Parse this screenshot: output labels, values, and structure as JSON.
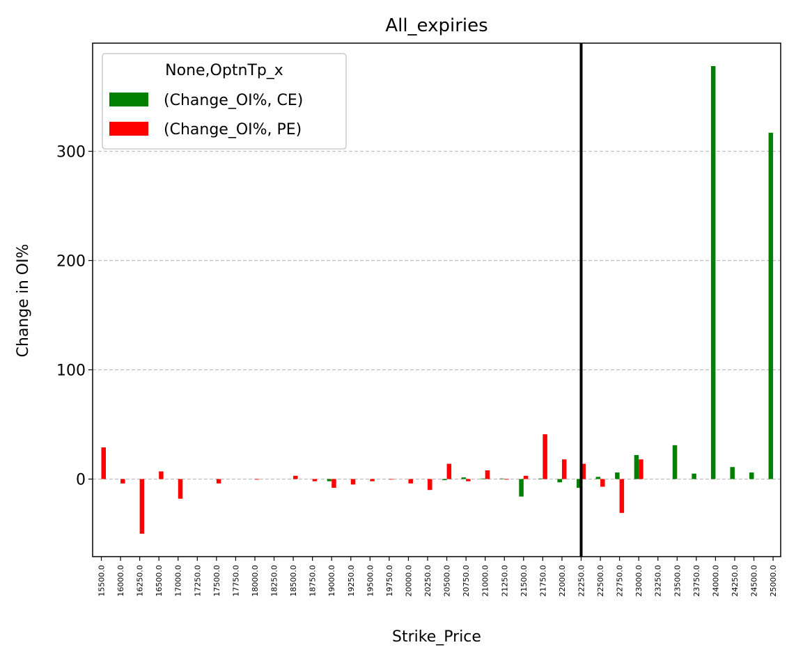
{
  "chart_data": {
    "type": "bar",
    "title": "All_expiries",
    "xlabel": "Strike_Price",
    "ylabel": "Change in OI%",
    "ylim": [
      -71,
      399
    ],
    "yticks": [
      0,
      100,
      200,
      300
    ],
    "grid": "y-dashed",
    "legend": {
      "title": "None,OptnTp_x",
      "position": "top-left"
    },
    "categories": [
      "15500.0",
      "16000.0",
      "16250.0",
      "16500.0",
      "17000.0",
      "17250.0",
      "17500.0",
      "17750.0",
      "18000.0",
      "18250.0",
      "18500.0",
      "18750.0",
      "19000.0",
      "19250.0",
      "19500.0",
      "19750.0",
      "20000.0",
      "20250.0",
      "20500.0",
      "20750.0",
      "21000.0",
      "21250.0",
      "21500.0",
      "21750.0",
      "22000.0",
      "22250.0",
      "22500.0",
      "22750.0",
      "23000.0",
      "23250.0",
      "23500.0",
      "23750.0",
      "24000.0",
      "24250.0",
      "24500.0",
      "25000.0"
    ],
    "series": [
      {
        "name": "(Change_OI%, CE)",
        "color": "#008000",
        "values": [
          0,
          0,
          0,
          0,
          0,
          0,
          0,
          0,
          0,
          0,
          0,
          0,
          -2,
          0,
          0,
          0,
          0,
          0,
          -1,
          1.5,
          0.5,
          0.5,
          -16,
          0.5,
          -3,
          -8,
          2,
          6,
          22,
          0,
          31,
          5,
          378,
          11,
          6,
          317
        ]
      },
      {
        "name": "(Change_OI%, PE)",
        "color": "#ff0000",
        "values": [
          29,
          -4,
          -50,
          7,
          -18,
          0,
          -4,
          0,
          -0.5,
          0,
          3,
          -2,
          -8,
          -5,
          -2,
          -0.5,
          -4,
          -10,
          14,
          -2,
          8,
          -0.5,
          3,
          41,
          18,
          14,
          -7,
          -31,
          18,
          0,
          0,
          0,
          0,
          0,
          0,
          0
        ]
      }
    ],
    "vertical_line": {
      "category": "22250.0",
      "color": "#000000"
    }
  }
}
